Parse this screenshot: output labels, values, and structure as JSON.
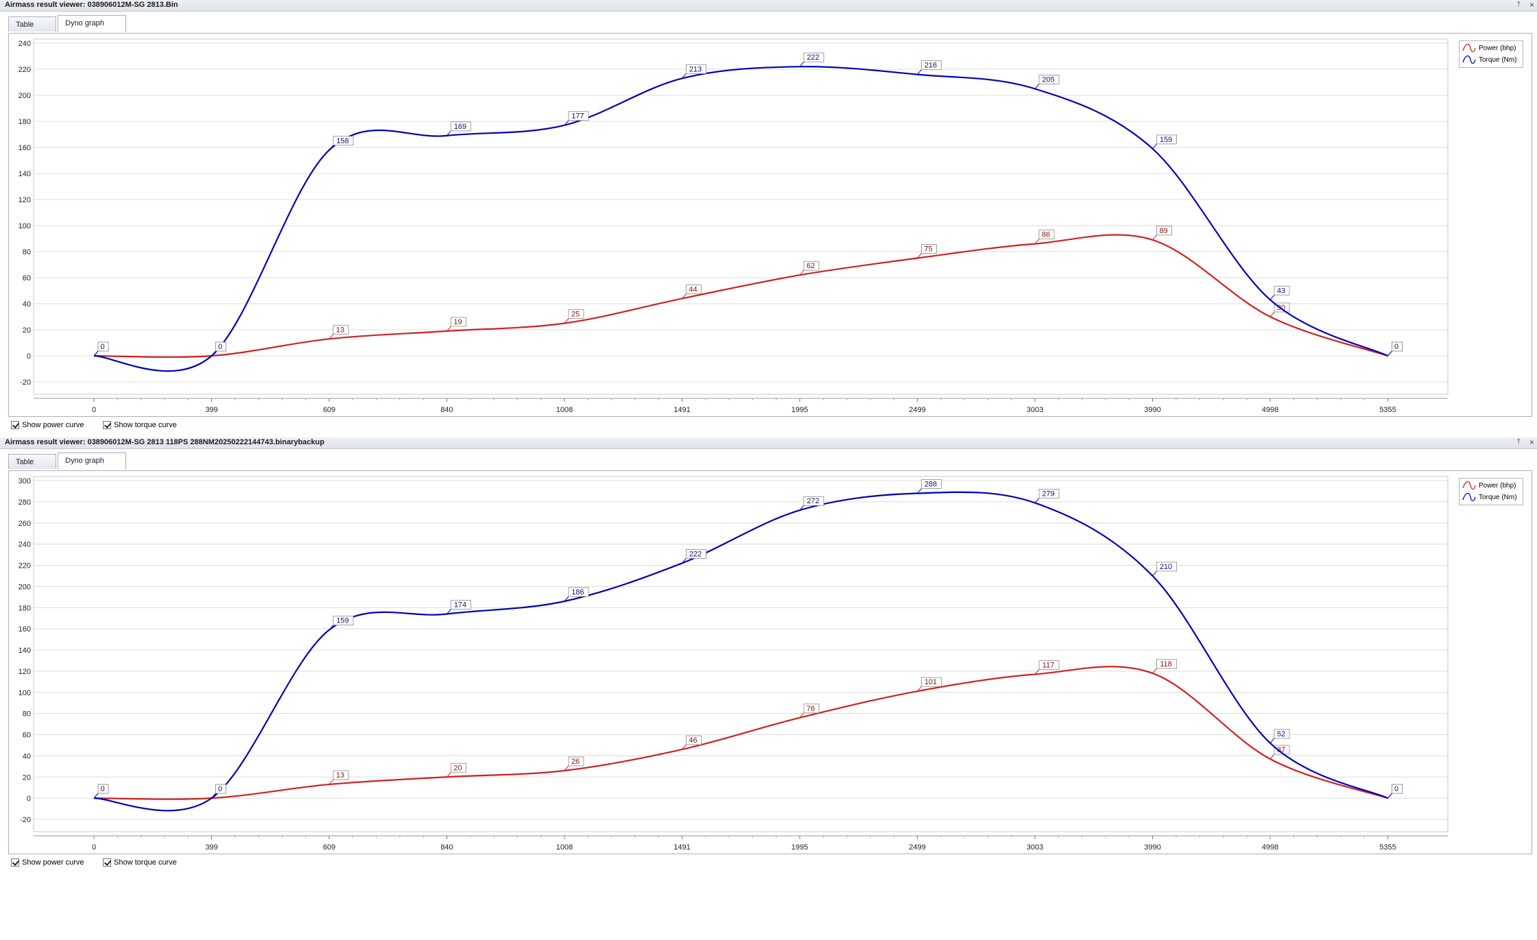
{
  "panels": [
    {
      "title": "Airmass result viewer: 038906012M-SG  2813.Bin",
      "tabs": [
        "Table view",
        "Dyno graph view"
      ],
      "active_tab": 1,
      "checkboxes": [
        {
          "label": "Show power curve",
          "checked": true
        },
        {
          "label": "Show torque curve",
          "checked": true
        }
      ],
      "legend": [
        "Power (bhp)",
        "Torque (Nm)"
      ],
      "chart_data": {
        "type": "line",
        "x": [
          0,
          399,
          609,
          840,
          1008,
          1491,
          1995,
          2499,
          3003,
          3990,
          4998,
          5355
        ],
        "ylim": [
          -20,
          240
        ],
        "yticks": [
          -20,
          0,
          20,
          40,
          60,
          80,
          100,
          120,
          140,
          160,
          180,
          200,
          220,
          240
        ],
        "series": [
          {
            "name": "Power (bhp)",
            "color": "#d02020",
            "values": [
              0,
              0,
              13,
              19,
              25,
              44,
              62,
              75,
              86,
              89,
              30,
              0
            ]
          },
          {
            "name": "Torque (Nm)",
            "color": "#0000b8",
            "values": [
              0,
              0,
              158,
              169,
              177,
              213,
              222,
              216,
              205,
              159,
              43,
              0
            ]
          }
        ]
      }
    },
    {
      "title": "Airmass result viewer: 038906012M-SG  2813 118PS  288NM20250222144743.binarybackup",
      "tabs": [
        "Table view",
        "Dyno graph view"
      ],
      "active_tab": 1,
      "checkboxes": [
        {
          "label": "Show power curve",
          "checked": true
        },
        {
          "label": "Show torque curve",
          "checked": true
        }
      ],
      "legend": [
        "Power (bhp)",
        "Torque (Nm)"
      ],
      "chart_data": {
        "type": "line",
        "x": [
          0,
          399,
          609,
          840,
          1008,
          1491,
          1995,
          2499,
          3003,
          3990,
          4998,
          5355
        ],
        "ylim": [
          -20,
          300
        ],
        "yticks": [
          -20,
          0,
          20,
          40,
          60,
          80,
          100,
          120,
          140,
          160,
          180,
          200,
          220,
          240,
          260,
          280,
          300
        ],
        "series": [
          {
            "name": "Power (bhp)",
            "color": "#d02020",
            "values": [
              0,
              0,
              13,
              20,
              26,
              46,
              76,
              101,
              117,
              118,
              37,
              0
            ]
          },
          {
            "name": "Torque (Nm)",
            "color": "#0000b8",
            "values": [
              0,
              0,
              159,
              174,
              186,
              222,
              272,
              288,
              279,
              210,
              52,
              0
            ]
          }
        ]
      }
    }
  ]
}
